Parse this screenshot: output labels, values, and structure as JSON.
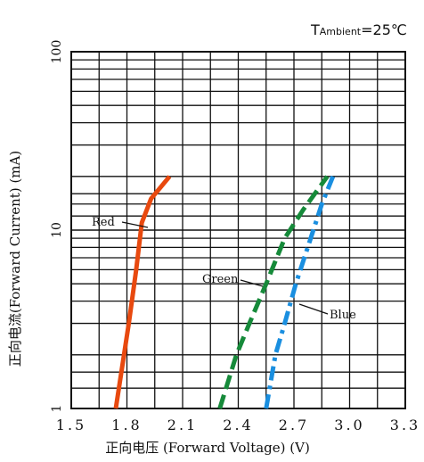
{
  "chart_data": {
    "type": "line",
    "annotation": {
      "prefix": "T",
      "subscript": "Ambient",
      "value": "=25℃"
    },
    "xlabel": "正向电压 (Forward Voltage) (V)",
    "ylabel": "正向电流(Forward Current) (mA)",
    "x_ticks": [
      1.5,
      1.8,
      2.1,
      2.4,
      2.7,
      3.0,
      3.3
    ],
    "x_tick_labels": [
      "1.5",
      "1.8",
      "2.1",
      "2.4",
      "2.7",
      "3.0",
      "3.3"
    ],
    "xlim": [
      1.5,
      3.3
    ],
    "y_scale": "log",
    "ylim": [
      1,
      100
    ],
    "y_tick_labels": [
      "1",
      "10",
      "100"
    ],
    "grid": true,
    "series": [
      {
        "name": "Red",
        "color": "#e8490f",
        "style": "solid",
        "points": [
          [
            1.74,
            1
          ],
          [
            1.81,
            3
          ],
          [
            1.85,
            6
          ],
          [
            1.88,
            11
          ],
          [
            1.93,
            15
          ],
          [
            2.03,
            20
          ]
        ]
      },
      {
        "name": "Green",
        "color": "#168a3a",
        "style": "dashed",
        "points": [
          [
            2.3,
            1
          ],
          [
            2.39,
            2
          ],
          [
            2.46,
            3
          ],
          [
            2.55,
            5
          ],
          [
            2.65,
            9
          ],
          [
            2.75,
            13
          ],
          [
            2.88,
            20
          ]
        ]
      },
      {
        "name": "Blue",
        "color": "#1a8fe0",
        "style": "dashdot",
        "points": [
          [
            2.55,
            1
          ],
          [
            2.6,
            2
          ],
          [
            2.65,
            3
          ],
          [
            2.71,
            5
          ],
          [
            2.79,
            9
          ],
          [
            2.85,
            14
          ],
          [
            2.91,
            20
          ]
        ]
      }
    ]
  }
}
